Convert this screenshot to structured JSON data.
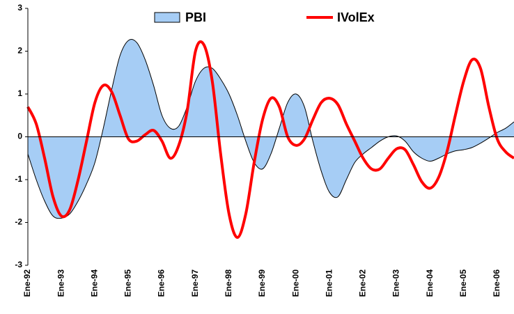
{
  "chart_data": {
    "type": "combo",
    "categories": [
      "Ene-92",
      null,
      null,
      null,
      "Ene-93",
      null,
      null,
      null,
      "Ene-94",
      null,
      null,
      null,
      "Ene-95",
      null,
      null,
      null,
      "Ene-96",
      null,
      null,
      null,
      "Ene-97",
      null,
      null,
      null,
      "Ene-98",
      null,
      null,
      null,
      "Ene-99",
      null,
      null,
      null,
      "Ene-00",
      null,
      null,
      null,
      "Ene-01",
      null,
      null,
      null,
      "Ene-02",
      null,
      null,
      null,
      "Ene-03",
      null,
      null,
      null,
      "Ene-04",
      null,
      null,
      null,
      "Ene-05",
      null,
      null,
      null,
      "Ene-06",
      null,
      null
    ],
    "series": [
      {
        "name": "PBI",
        "type": "area",
        "color": "#a6cdf5",
        "values": [
          -0.4,
          -1.0,
          -1.5,
          -1.85,
          -1.9,
          -1.8,
          -1.5,
          -1.1,
          -0.6,
          0.2,
          1.1,
          1.9,
          2.25,
          2.2,
          1.8,
          1.2,
          0.5,
          0.2,
          0.25,
          0.7,
          1.3,
          1.6,
          1.6,
          1.35,
          1.0,
          0.5,
          -0.1,
          -0.6,
          -0.75,
          -0.4,
          0.2,
          0.8,
          1.0,
          0.7,
          -0.1,
          -0.8,
          -1.3,
          -1.4,
          -1.0,
          -0.6,
          -0.4,
          -0.25,
          -0.1,
          0.0,
          0.02,
          -0.1,
          -0.35,
          -0.5,
          -0.57,
          -0.5,
          -0.4,
          -0.33,
          -0.3,
          -0.25,
          -0.15,
          -0.03,
          0.1,
          0.2,
          0.35
        ]
      },
      {
        "name": "IVolEx",
        "type": "line",
        "color": "#ff0000",
        "values": [
          0.7,
          0.3,
          -0.5,
          -1.4,
          -1.85,
          -1.7,
          -1.0,
          -0.1,
          0.8,
          1.2,
          1.05,
          0.5,
          -0.05,
          -0.1,
          0.05,
          0.15,
          -0.1,
          -0.5,
          -0.2,
          0.6,
          2.0,
          2.15,
          1.3,
          -0.4,
          -1.8,
          -2.35,
          -1.8,
          -0.6,
          0.4,
          0.9,
          0.7,
          0.0,
          -0.2,
          -0.05,
          0.4,
          0.8,
          0.9,
          0.75,
          0.3,
          -0.1,
          -0.5,
          -0.75,
          -0.75,
          -0.5,
          -0.28,
          -0.3,
          -0.65,
          -1.05,
          -1.2,
          -0.95,
          -0.35,
          0.5,
          1.3,
          1.8,
          1.6,
          0.7,
          -0.05,
          -0.35,
          -0.5
        ]
      }
    ],
    "ylim": [
      -3,
      3
    ],
    "yticks": [
      -3,
      -2,
      -1,
      0,
      1,
      2,
      3
    ],
    "legend": "top"
  }
}
